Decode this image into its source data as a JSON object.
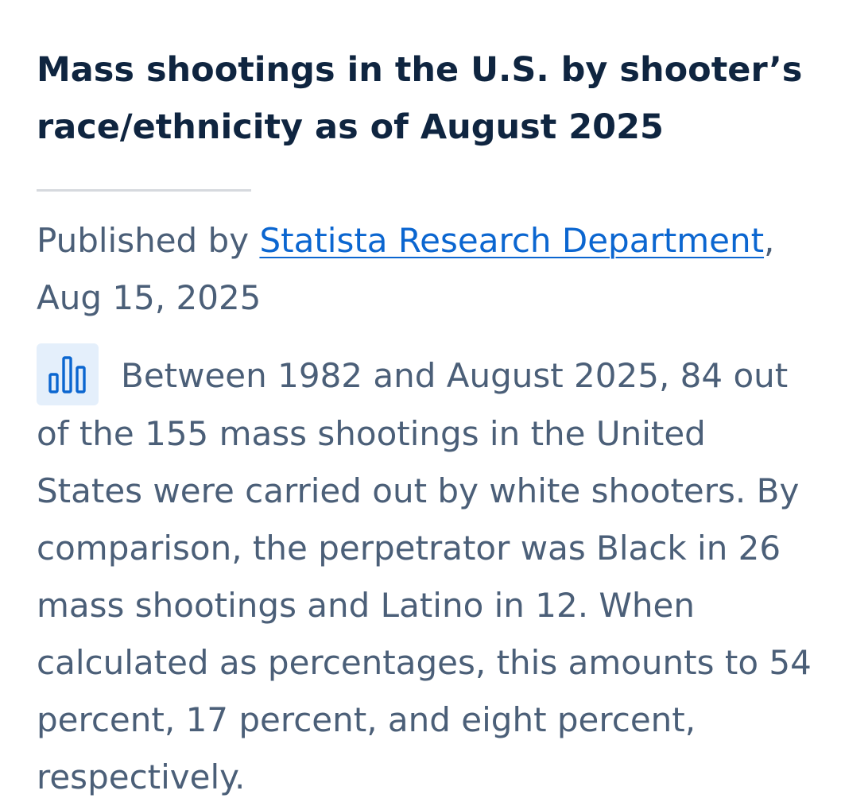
{
  "article": {
    "title": "Mass shootings in the U.S. by shooter’s race/ethnicity as of August 2025",
    "published_prefix": "Published by ",
    "publisher_link": "Statista Research Department",
    "published_sep": ",",
    "published_date": "Aug 15, 2025",
    "description": "Between 1982 and August 2025, 84 out of the 155 mass shootings in the United States were carried out by white shooters. By comparison, the perpetrator was Black in 26 mass shootings and Latino in 12. When calculated as percentages, this amounts to 54 percent, 17 percent, and eight percent, respectively.",
    "icon": "bar-chart-icon"
  },
  "colors": {
    "title": "#0f2540",
    "body_text": "#4b5f78",
    "link": "#0b66d0",
    "icon": "#0b66d0",
    "icon_bg": "#e4effb",
    "divider": "#d6d9de"
  }
}
